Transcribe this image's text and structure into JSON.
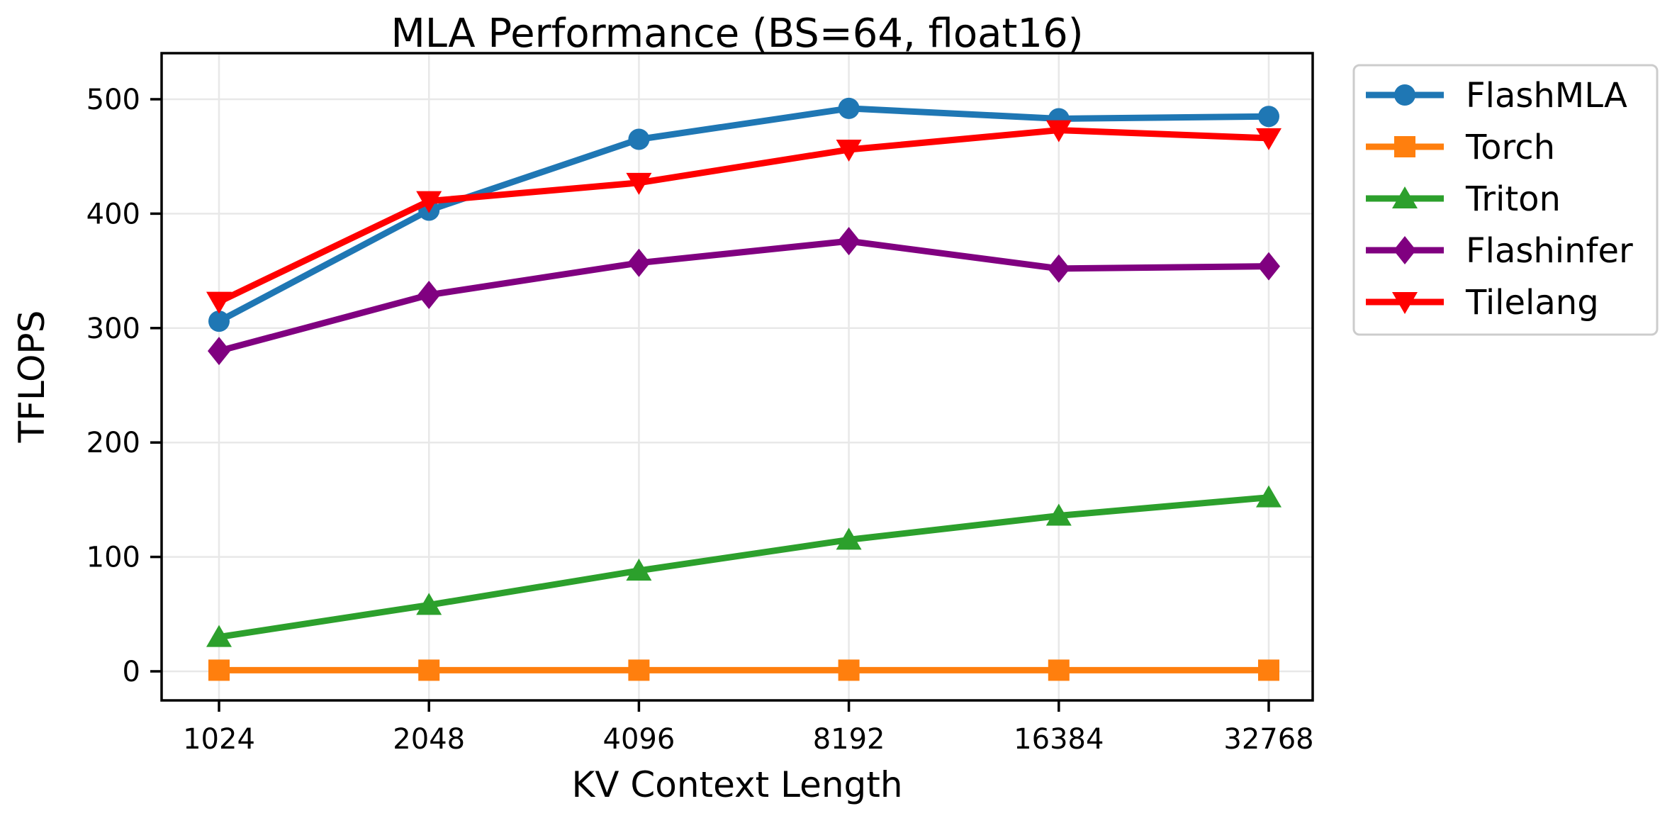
{
  "chart_data": {
    "type": "line",
    "title": "MLA Performance (BS=64, float16)",
    "xlabel": "KV Context Length",
    "ylabel": "TFLOPS",
    "categories": [
      "1024",
      "2048",
      "4096",
      "8192",
      "16384",
      "32768"
    ],
    "y_ticks": [
      0,
      100,
      200,
      300,
      400,
      500
    ],
    "ylim": [
      -26,
      540
    ],
    "grid": true,
    "legend_position": "outside-top-right",
    "background_color": "#ffffff",
    "grid_color": "#e8e8e8",
    "series": [
      {
        "name": "FlashMLA",
        "marker": "circle",
        "color": "#1f77b4",
        "values": [
          306,
          403,
          465,
          492,
          483,
          485
        ]
      },
      {
        "name": "Torch",
        "marker": "square",
        "color": "#ff7f0e",
        "values": [
          1,
          1,
          1,
          1,
          1,
          1
        ]
      },
      {
        "name": "Triton",
        "marker": "triangle-up",
        "color": "#2ca02c",
        "values": [
          30,
          58,
          88,
          115,
          136,
          152
        ]
      },
      {
        "name": "Flashinfer",
        "marker": "diamond",
        "color": "#800080",
        "values": [
          280,
          329,
          357,
          376,
          352,
          354
        ]
      },
      {
        "name": "Tilelang",
        "marker": "triangle-down",
        "color": "#ff0000",
        "values": [
          323,
          411,
          427,
          456,
          473,
          466
        ]
      }
    ]
  }
}
